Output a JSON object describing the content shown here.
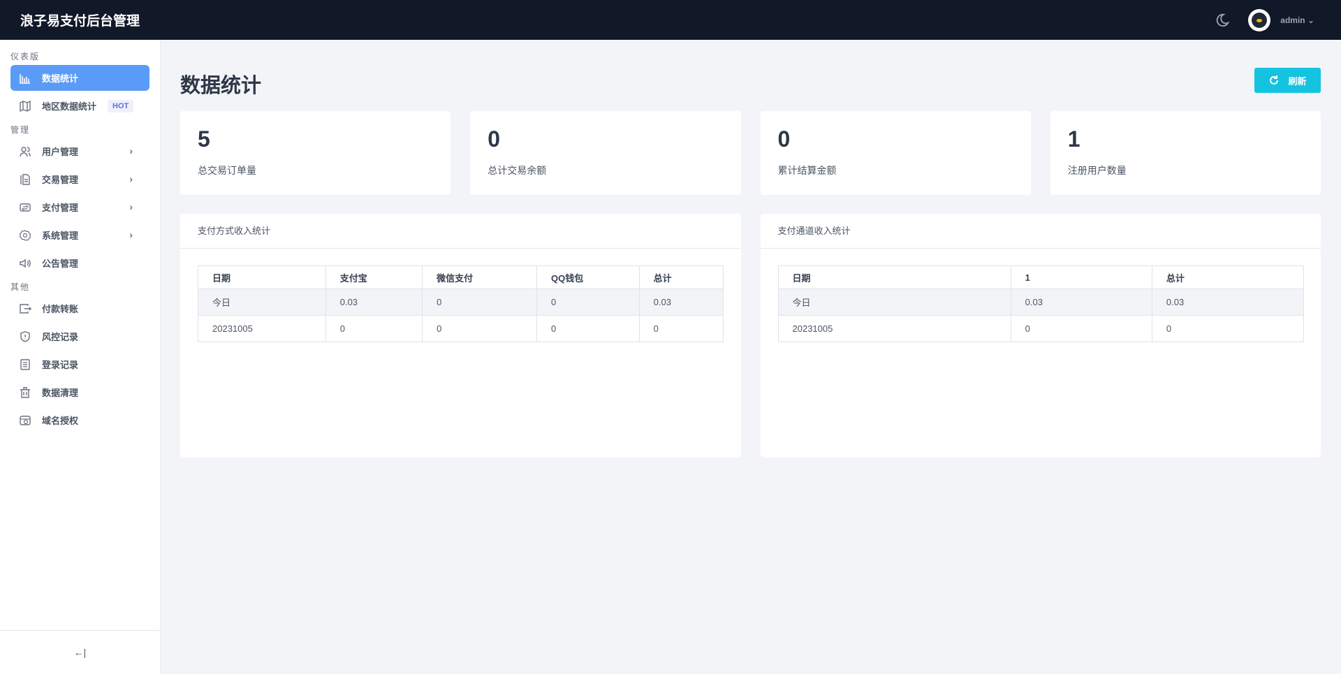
{
  "app": {
    "title": "浪子易支付后台管理",
    "user": "admin"
  },
  "sidebar": {
    "sections": [
      "仪表版",
      "管理",
      "其他"
    ],
    "items": [
      {
        "label": "数据统计",
        "icon": "bar-chart-icon"
      },
      {
        "label": "地区数据统计",
        "icon": "map-icon",
        "badge": "HOT"
      },
      {
        "label": "用户管理",
        "icon": "users-icon"
      },
      {
        "label": "交易管理",
        "icon": "document-icon"
      },
      {
        "label": "支付管理",
        "icon": "exchange-icon"
      },
      {
        "label": "系统管理",
        "icon": "gear-icon"
      },
      {
        "label": "公告管理",
        "icon": "speaker-icon"
      },
      {
        "label": "付款转账",
        "icon": "transfer-icon"
      },
      {
        "label": "风控记录",
        "icon": "shield-icon"
      },
      {
        "label": "登录记录",
        "icon": "log-icon"
      },
      {
        "label": "数据清理",
        "icon": "trash-icon"
      },
      {
        "label": "域名授权",
        "icon": "domain-icon"
      }
    ],
    "collapse": "←|"
  },
  "page": {
    "title": "数据统计",
    "refresh": "刷新"
  },
  "cards": [
    {
      "value": "5",
      "label": "总交易订单量"
    },
    {
      "value": "0",
      "label": "总计交易余额"
    },
    {
      "value": "0",
      "label": "累计结算金额"
    },
    {
      "value": "1",
      "label": "注册用户数量"
    }
  ],
  "paymethod": {
    "title": "支付方式收入统计",
    "headers": [
      "日期",
      "支付宝",
      "微信支付",
      "QQ钱包",
      "总计"
    ],
    "rows": [
      [
        "今日",
        "0.03",
        "0",
        "0",
        "0.03"
      ],
      [
        "20231005",
        "0",
        "0",
        "0",
        "0"
      ]
    ]
  },
  "channel": {
    "title": "支付通道收入统计",
    "headers": [
      "日期",
      "1",
      "总计"
    ],
    "rows": [
      [
        "今日",
        "0.03",
        "0.03"
      ],
      [
        "20231005",
        "0",
        "0"
      ]
    ]
  }
}
